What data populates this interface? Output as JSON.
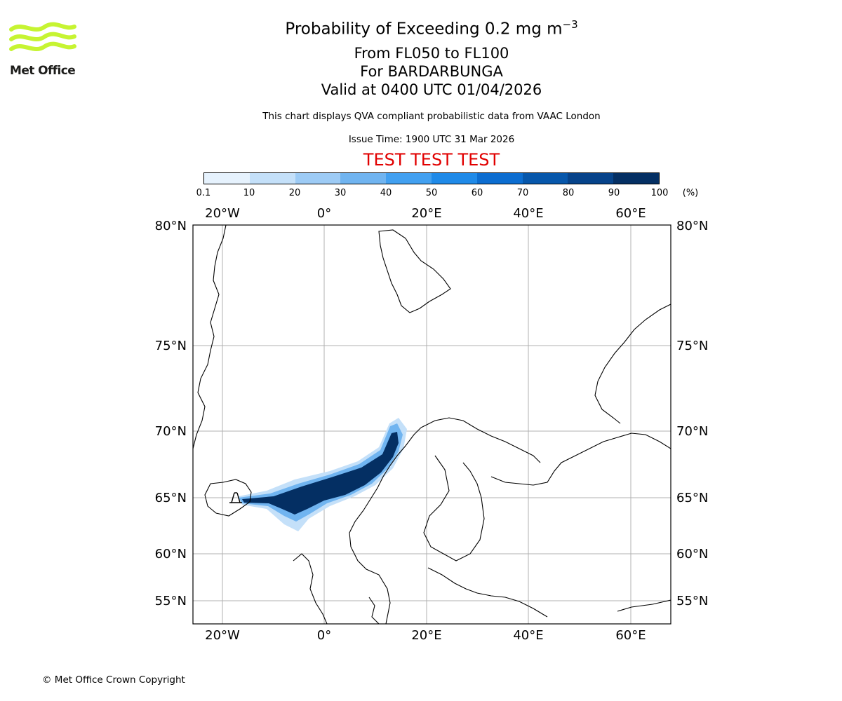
{
  "header": {
    "title_main": "Probability of Exceeding 0.2 mg m",
    "title_sup": "−3",
    "flight_levels": "From FL050 to FL100",
    "volcano": "For BARDARBUNGA",
    "valid_time": "Valid at 0400 UTC 01/04/2026",
    "description": "This chart displays QVA compliant probabilistic data from VAAC London",
    "issue_time": "Issue Time: 1900 UTC 31 Mar 2026",
    "test_banner": "TEST TEST TEST"
  },
  "logo": {
    "text": "Met Office",
    "color": "#c6f432"
  },
  "colorbar": {
    "ticks": [
      "0.1",
      "10",
      "20",
      "30",
      "40",
      "50",
      "60",
      "70",
      "80",
      "90",
      "100"
    ],
    "unit": "(%)",
    "colors": [
      "#e6f2fd",
      "#c4e0f9",
      "#9dcbf5",
      "#70b4f0",
      "#42a0f0",
      "#1f8ae8",
      "#0c6dd0",
      "#0757ab",
      "#06438a",
      "#042f63"
    ]
  },
  "map": {
    "lon_labels": [
      "20°W",
      "0°",
      "20°E",
      "40°E",
      "60°E"
    ],
    "lat_labels": [
      "80°N",
      "75°N",
      "70°N",
      "65°N",
      "60°N",
      "55°N"
    ],
    "plume_color": "#042f63",
    "plume_edge_color": "#9dcbf5"
  },
  "footer": {
    "copyright": "© Met Office Crown Copyright"
  }
}
